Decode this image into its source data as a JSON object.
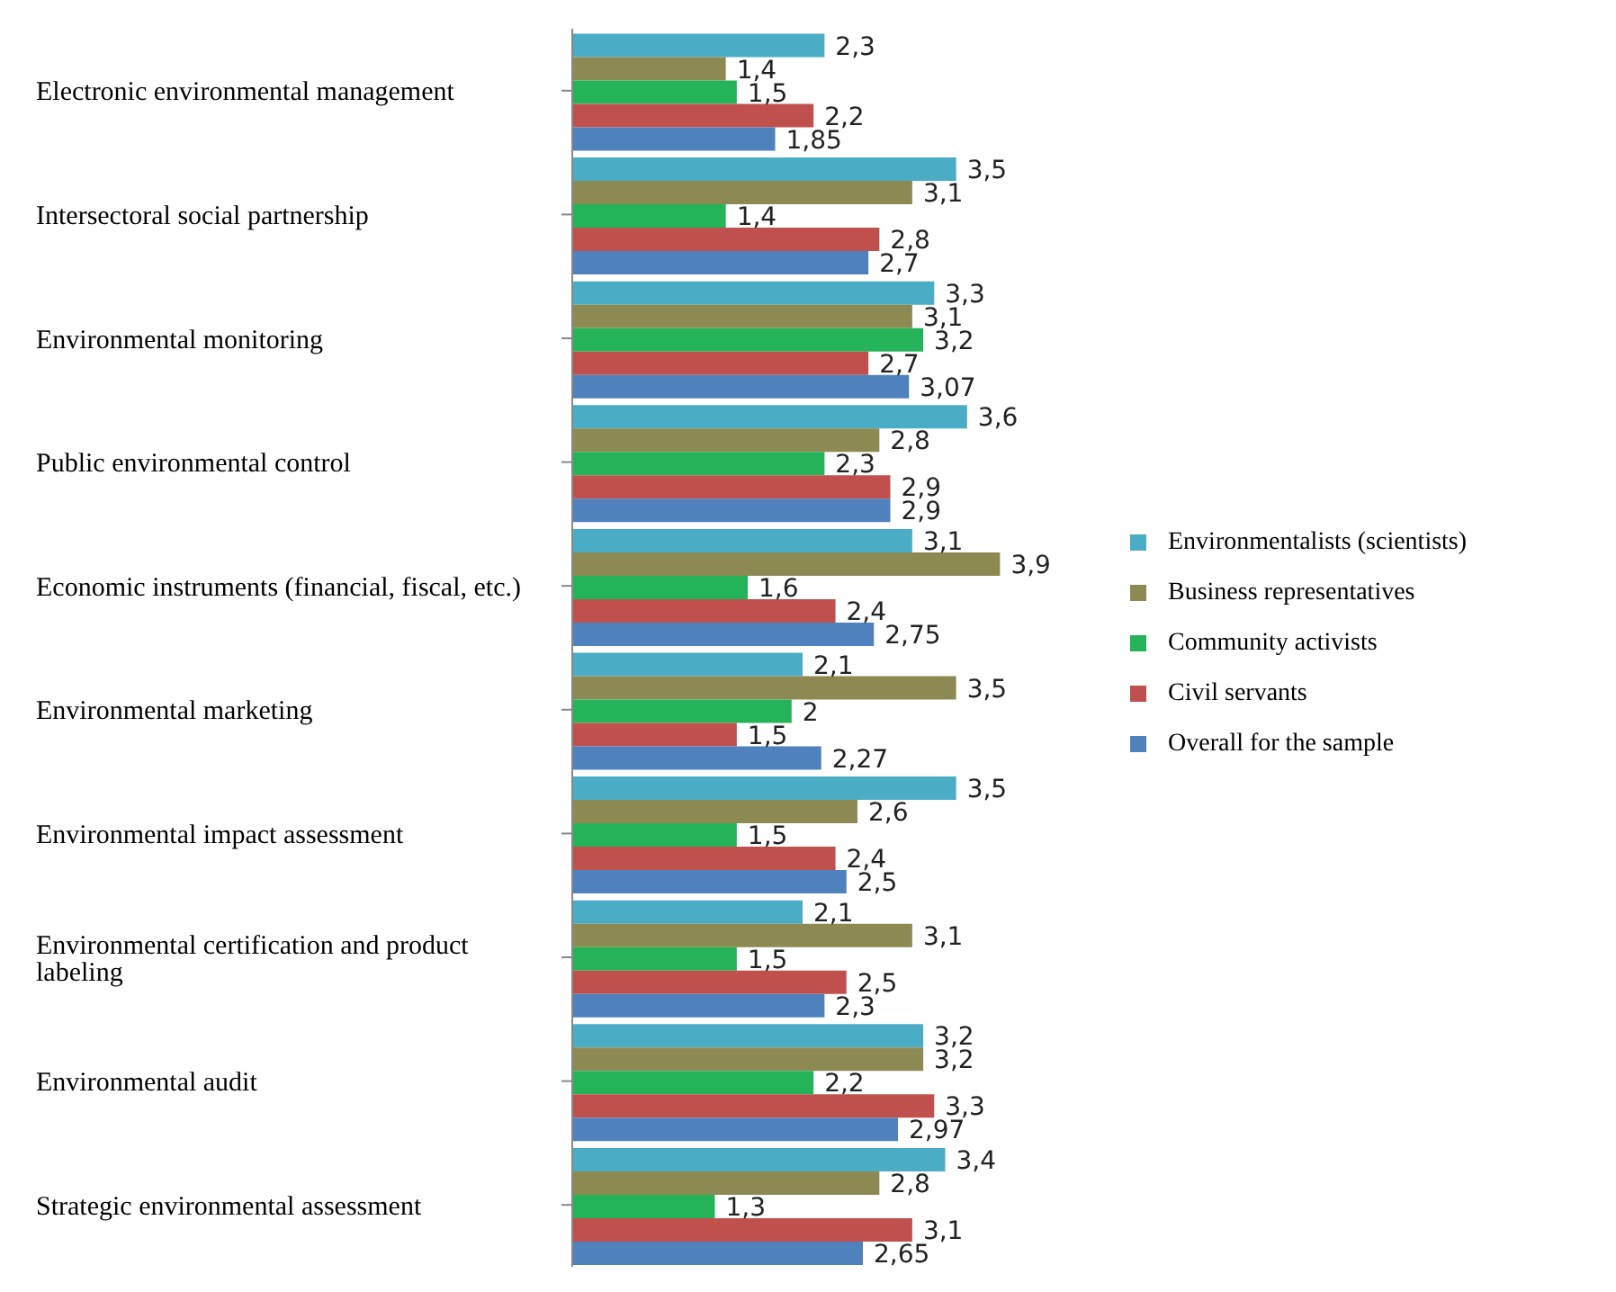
{
  "chart_data": {
    "type": "bar",
    "orientation": "horizontal",
    "categories": [
      "Electronic environmental management",
      "Intersectoral social partnership",
      "Environmental monitoring",
      "Public environmental control",
      "Economic instruments (financial, fiscal, etc.)",
      "Environmental marketing",
      "Environmental impact assessment",
      "Environmental certification and product labeling",
      "Environmental audit",
      "Strategic environmental assessment"
    ],
    "series": [
      {
        "name": "Environmentalists (scientists)",
        "color": "#4bacc6",
        "values": [
          2.3,
          3.5,
          3.3,
          3.6,
          3.1,
          2.1,
          3.5,
          2.1,
          3.2,
          3.4
        ],
        "value_labels": [
          "2,3",
          "3,5",
          "3,3",
          "3,6",
          "3,1",
          "2,1",
          "3,5",
          "2,1",
          "3,2",
          "3,4"
        ]
      },
      {
        "name": "Business representatives",
        "color": "#8c8a52",
        "values": [
          1.4,
          3.1,
          3.1,
          2.8,
          3.9,
          3.5,
          2.6,
          3.1,
          3.2,
          2.8
        ],
        "value_labels": [
          "1,4",
          "3,1",
          "3,1",
          "2,8",
          "3,9",
          "3,5",
          "2,6",
          "3,1",
          "3,2",
          "2,8"
        ]
      },
      {
        "name": "Community activists",
        "color": "#25b35a",
        "values": [
          1.5,
          1.4,
          3.2,
          2.3,
          1.6,
          2,
          1.5,
          1.5,
          2.2,
          1.3
        ],
        "value_labels": [
          "1,5",
          "1,4",
          "3,2",
          "2,3",
          "1,6",
          "2",
          "1,5",
          "1,5",
          "2,2",
          "1,3"
        ]
      },
      {
        "name": "Civil servants",
        "color": "#c0504d",
        "values": [
          2.2,
          2.8,
          2.7,
          2.9,
          2.4,
          1.5,
          2.4,
          2.5,
          3.3,
          3.1
        ],
        "value_labels": [
          "2,2",
          "2,8",
          "2,7",
          "2,9",
          "2,4",
          "1,5",
          "2,4",
          "2,5",
          "3,3",
          "3,1"
        ]
      },
      {
        "name": "Overall for the sample",
        "color": "#4f81bd",
        "values": [
          1.85,
          2.7,
          3.07,
          2.9,
          2.75,
          2.27,
          2.5,
          2.3,
          2.97,
          2.65
        ],
        "value_labels": [
          "1,85",
          "2,7",
          "3,07",
          "2,9",
          "2,75",
          "2,27",
          "2,5",
          "2,3",
          "2,97",
          "2,65"
        ]
      }
    ],
    "legend": "right"
  }
}
